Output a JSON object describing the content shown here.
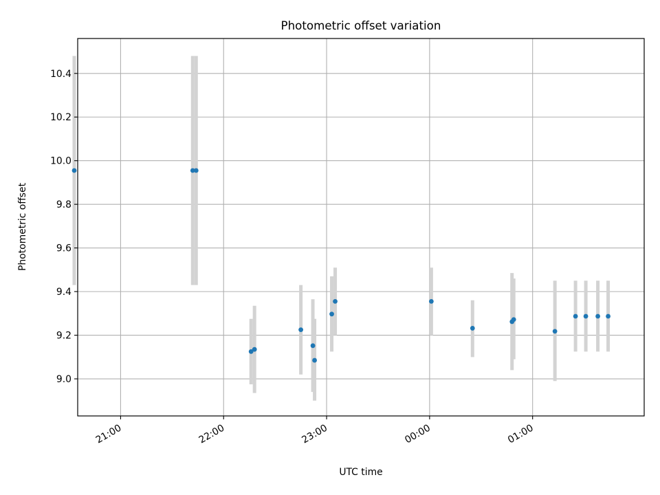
{
  "chart_data": {
    "type": "scatter",
    "title": "Photometric offset variation",
    "xlabel": "UTC time",
    "ylabel": "Photometric offset",
    "xlim": [
      "20:35",
      "02:05"
    ],
    "ylim": [
      8.83,
      10.56
    ],
    "x_ticks": [
      "21:00",
      "22:00",
      "23:00",
      "00:00",
      "01:00"
    ],
    "y_ticks": [
      "9.0",
      "9.2",
      "9.4",
      "9.6",
      "9.8",
      "10.0",
      "10.2",
      "10.4"
    ],
    "grid": true,
    "colors": {
      "point": "#1f77b4",
      "errorbar": "#d3d3d3",
      "grid": "#b0b0b0"
    },
    "points": [
      {
        "time": "20:33",
        "y": 9.955,
        "err_low": 9.43,
        "err_high": 10.48
      },
      {
        "time": "21:42",
        "y": 9.955,
        "err_low": 9.43,
        "err_high": 10.48
      },
      {
        "time": "21:44",
        "y": 9.955,
        "err_low": 9.43,
        "err_high": 10.48
      },
      {
        "time": "22:16",
        "y": 9.125,
        "err_low": 8.975,
        "err_high": 9.275
      },
      {
        "time": "22:18",
        "y": 9.135,
        "err_low": 8.935,
        "err_high": 9.335
      },
      {
        "time": "22:45",
        "y": 9.225,
        "err_low": 9.02,
        "err_high": 9.43
      },
      {
        "time": "22:52",
        "y": 9.152,
        "err_low": 8.94,
        "err_high": 9.365
      },
      {
        "time": "22:53",
        "y": 9.085,
        "err_low": 8.9,
        "err_high": 9.275
      },
      {
        "time": "23:03",
        "y": 9.297,
        "err_low": 9.125,
        "err_high": 9.47
      },
      {
        "time": "23:05",
        "y": 9.355,
        "err_low": 9.2,
        "err_high": 9.51
      },
      {
        "time": "00:01",
        "y": 9.355,
        "err_low": 9.2,
        "err_high": 9.51
      },
      {
        "time": "00:25",
        "y": 9.232,
        "err_low": 9.1,
        "err_high": 9.36
      },
      {
        "time": "00:48",
        "y": 9.262,
        "err_low": 9.04,
        "err_high": 9.485
      },
      {
        "time": "00:49",
        "y": 9.272,
        "err_low": 9.09,
        "err_high": 9.46
      },
      {
        "time": "01:13",
        "y": 9.218,
        "err_low": 8.99,
        "err_high": 9.45
      },
      {
        "time": "01:25",
        "y": 9.287,
        "err_low": 9.125,
        "err_high": 9.45
      },
      {
        "time": "01:31",
        "y": 9.287,
        "err_low": 9.125,
        "err_high": 9.45
      },
      {
        "time": "01:38",
        "y": 9.287,
        "err_low": 9.125,
        "err_high": 9.45
      },
      {
        "time": "01:44",
        "y": 9.287,
        "err_low": 9.125,
        "err_high": 9.45
      }
    ]
  }
}
